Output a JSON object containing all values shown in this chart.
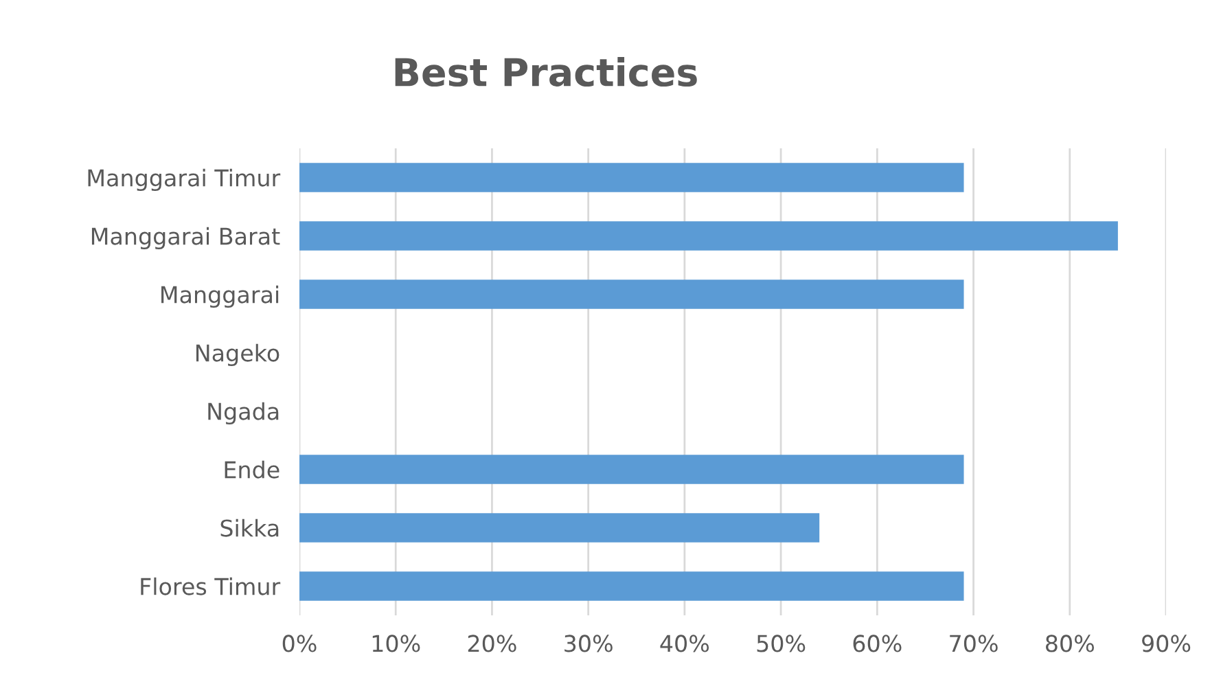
{
  "chart_data": {
    "type": "bar",
    "orientation": "horizontal",
    "title": "Best Practices",
    "categories": [
      "Manggarai Timur",
      "Manggarai Barat",
      "Manggarai",
      "Nageko",
      "Ngada",
      "Ende",
      "Sikka",
      "Flores Timur"
    ],
    "values": [
      69,
      85,
      69,
      0,
      0,
      69,
      54,
      69
    ],
    "color": "#5b9bd5",
    "xlim": [
      0,
      90
    ],
    "xticks": [
      {
        "value": 0,
        "label": "0%"
      },
      {
        "value": 10,
        "label": "10%"
      },
      {
        "value": 20,
        "label": "20%"
      },
      {
        "value": 30,
        "label": "30%"
      },
      {
        "value": 40,
        "label": "40%"
      },
      {
        "value": 50,
        "label": "50%"
      },
      {
        "value": 60,
        "label": "60%"
      },
      {
        "value": 70,
        "label": "70%"
      },
      {
        "value": 80,
        "label": "80%"
      },
      {
        "value": 90,
        "label": "90%"
      }
    ],
    "grid": "x",
    "legend": false
  }
}
